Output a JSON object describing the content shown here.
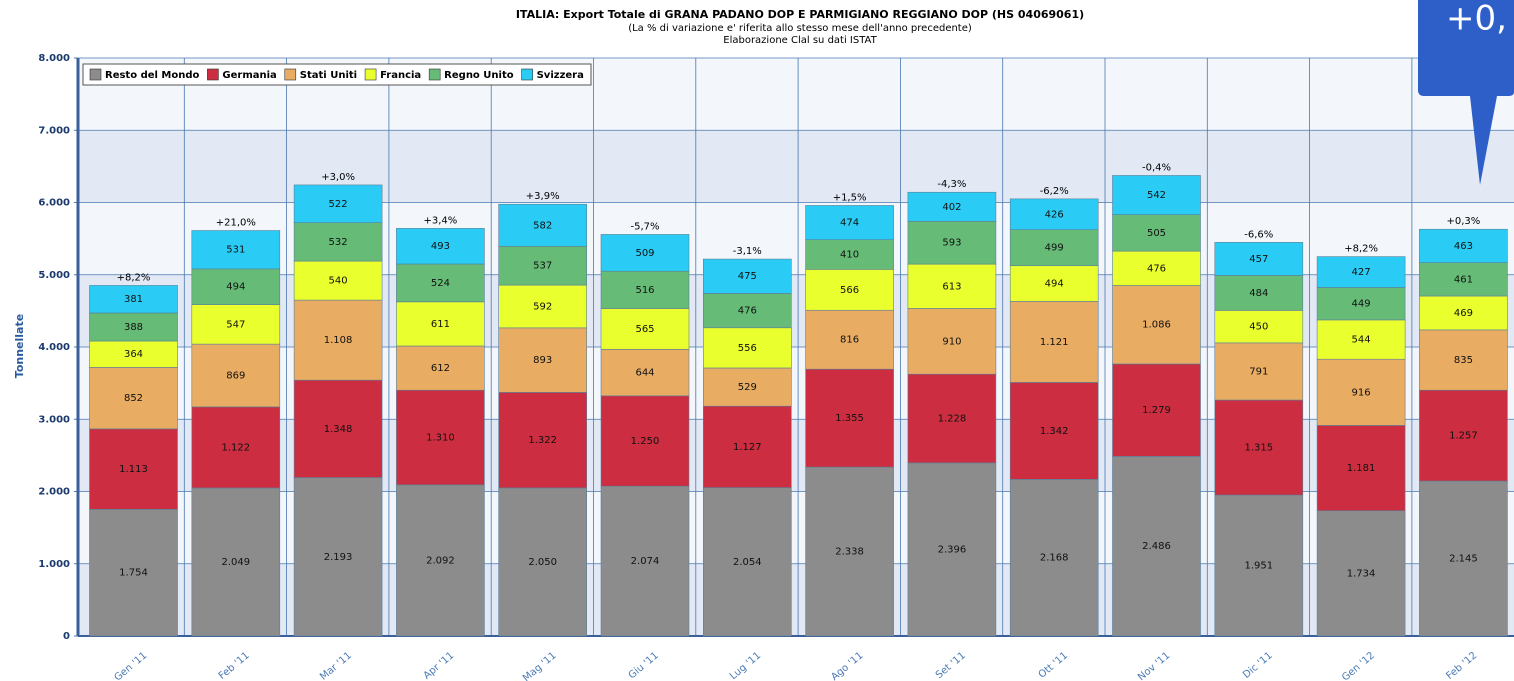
{
  "chart_data": {
    "type": "stacked_bar",
    "title": "ITALIA: Export Totale di GRANA PADANO DOP E PARMIGIANO REGGIANO DOP (HS 04069061)",
    "subtitle": [
      "(La % di variazione e' riferita allo stesso mese dell'anno precedente)",
      "Elaborazione Clal su dati ISTAT"
    ],
    "y_label": "Tonnellate",
    "callout": "+0,",
    "categories": [
      "Gen '11",
      "Feb '11",
      "Mar '11",
      "Apr '11",
      "Mag '11",
      "Giu '11",
      "Lug '11",
      "Ago '11",
      "Set '11",
      "Ott '11",
      "Nov '11",
      "Dic '11",
      "Gen '12",
      "Feb '12"
    ],
    "change_labels": [
      "+8,2%",
      "+21,0%",
      "+3,0%",
      "+3,4%",
      "+3,9%",
      "-5,7%",
      "-3,1%",
      "+1,5%",
      "-4,3%",
      "-6,2%",
      "-0,4%",
      "-6,6%",
      "+8,2%",
      "+0,3%"
    ],
    "series": [
      {
        "name": "Resto del Mondo",
        "color": "#8c8c8c",
        "values": [
          1754,
          2049,
          2193,
          2092,
          2050,
          2074,
          2054,
          2338,
          2396,
          2168,
          2486,
          1951,
          1734,
          2145
        ],
        "value_labels": [
          "1.754",
          "2.049",
          "2.193",
          "2.092",
          "2.050",
          "2.074",
          "2.054",
          "2.338",
          "2.396",
          "2.168",
          "2.486",
          "1.951",
          "1.734",
          "2.145"
        ]
      },
      {
        "name": "Germania",
        "color": "#cc2d40",
        "values": [
          1113,
          1122,
          1348,
          1310,
          1322,
          1250,
          1127,
          1355,
          1228,
          1342,
          1279,
          1315,
          1181,
          1257
        ],
        "value_labels": [
          "1.113",
          "1.122",
          "1.348",
          "1.310",
          "1.322",
          "1.250",
          "1.127",
          "1.355",
          "1.228",
          "1.342",
          "1.279",
          "1.315",
          "1.181",
          "1.257"
        ]
      },
      {
        "name": "Stati Uniti",
        "color": "#e9ac63",
        "values": [
          852,
          869,
          1108,
          612,
          893,
          644,
          529,
          816,
          910,
          1121,
          1086,
          791,
          916,
          835
        ],
        "value_labels": [
          "852",
          "869",
          "1.108",
          "612",
          "893",
          "644",
          "529",
          "816",
          "910",
          "1.121",
          "1.086",
          "791",
          "916",
          "835"
        ]
      },
      {
        "name": "Francia",
        "color": "#eaff2e",
        "values": [
          364,
          547,
          540,
          611,
          592,
          565,
          556,
          566,
          613,
          494,
          476,
          450,
          544,
          469
        ]
      },
      {
        "name": "Regno Unito",
        "color": "#66bb77",
        "values": [
          388,
          494,
          532,
          524,
          537,
          516,
          476,
          410,
          593,
          499,
          505,
          484,
          449,
          461
        ]
      },
      {
        "name": "Svizzera",
        "color": "#2accf5",
        "values": [
          381,
          531,
          522,
          493,
          582,
          509,
          475,
          474,
          402,
          426,
          542,
          457,
          427,
          463
        ]
      }
    ],
    "ylim": [
      0,
      8000
    ],
    "yticks": [
      0,
      {
        "value": 1000,
        "label": "1.000"
      },
      {
        "value": 2000,
        "label": "2.000"
      },
      {
        "value": 3000,
        "label": "3.000"
      },
      {
        "value": 4000,
        "label": "4.000"
      },
      {
        "value": 5000,
        "label": "5.000"
      },
      {
        "value": 6000,
        "label": "6.000"
      },
      {
        "value": 7000,
        "label": "7.000"
      },
      {
        "value": 8000,
        "label": "8.000"
      }
    ],
    "grid": true
  }
}
